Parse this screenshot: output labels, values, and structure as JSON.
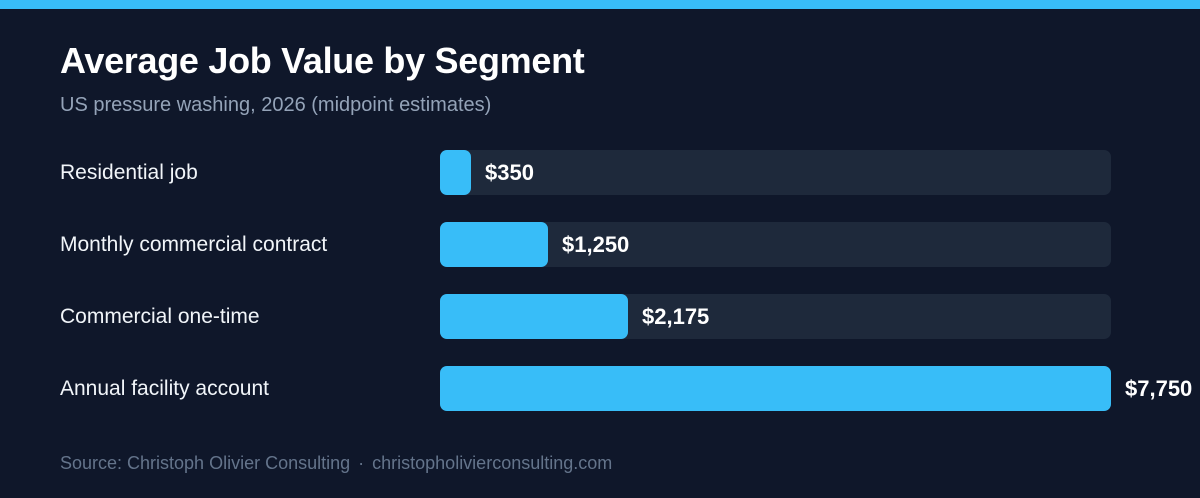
{
  "colors": {
    "background": "#0f172a",
    "accent": "#38bdf8",
    "track": "#1e293b",
    "title": "#ffffff",
    "subtitle": "#94a3b8",
    "source": "#64748b"
  },
  "footer": {
    "source_text": "Source: Christoph Olivier Consulting",
    "separator": "·",
    "url": "christopholivierconsulting.com"
  },
  "chart_data": {
    "type": "bar",
    "orientation": "horizontal",
    "title": "Average Job Value by Segment",
    "subtitle": "US pressure washing, 2026 (midpoint estimates)",
    "categories": [
      "Residential job",
      "Monthly commercial contract",
      "Commercial one-time",
      "Annual facility account"
    ],
    "values": [
      350,
      1250,
      2175,
      7750
    ],
    "value_labels": [
      "$350",
      "$1,250",
      "$2,175",
      "$7,750"
    ],
    "xlim": [
      0,
      7750
    ],
    "grid": false
  }
}
